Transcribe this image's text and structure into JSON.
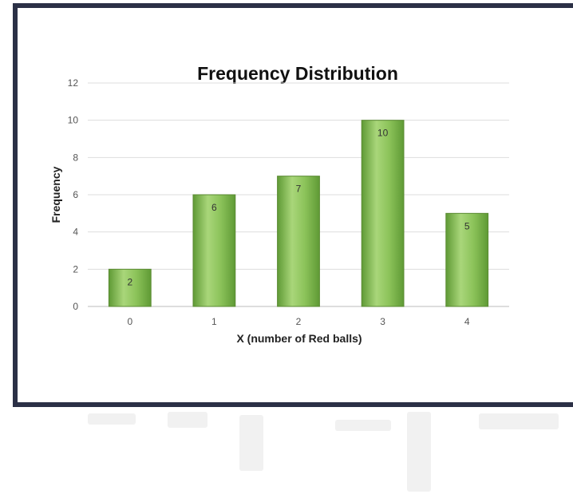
{
  "chart_data": {
    "type": "bar",
    "title": "Frequency Distribution",
    "xlabel": "X (number of Red balls)",
    "ylabel": "Frequency",
    "categories": [
      "0",
      "1",
      "2",
      "3",
      "4"
    ],
    "values": [
      2,
      6,
      7,
      10,
      5
    ],
    "ylim": [
      0,
      12
    ],
    "yticks": [
      0,
      2,
      4,
      6,
      8,
      10,
      12
    ],
    "data_labels": true,
    "grid": true,
    "legend": "none",
    "colors": {
      "bar_light": "#a9d67a",
      "bar_mid": "#7cb84a",
      "bar_dark": "#5f9a35",
      "frame": "#2b3046"
    }
  }
}
